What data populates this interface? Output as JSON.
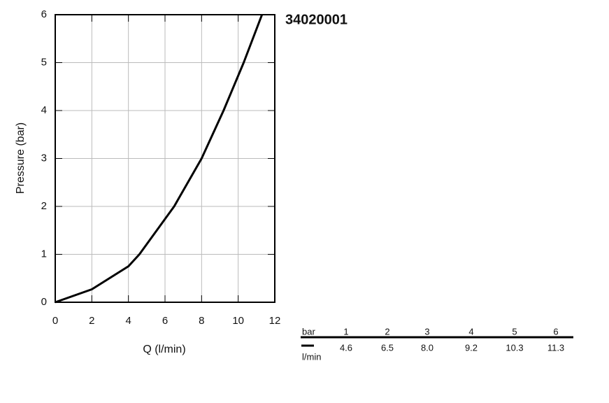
{
  "chart_data": {
    "type": "line",
    "title": "34020001",
    "x_label": "Q (l/min)",
    "y_label": "Pressure (bar)",
    "x": [
      0,
      2,
      4,
      4.6,
      6.5,
      8.0,
      9.2,
      10.3,
      11.3
    ],
    "values": [
      0,
      0.27,
      0.75,
      1,
      2,
      3,
      4,
      5,
      6
    ],
    "color": "#000000",
    "xlim": [
      0,
      12
    ],
    "xticks": [
      0,
      2,
      4,
      6,
      8,
      10,
      12
    ],
    "ylim": [
      0,
      6
    ],
    "yticks": [
      0,
      1,
      2,
      3,
      4,
      5,
      6
    ],
    "grid": true
  },
  "table": {
    "header": [
      "bar",
      1,
      2,
      3,
      4,
      5,
      6
    ],
    "rows": [
      [
        "l/min",
        4.6,
        6.5,
        "8.0",
        9.2,
        10.3,
        11.3
      ]
    ]
  }
}
